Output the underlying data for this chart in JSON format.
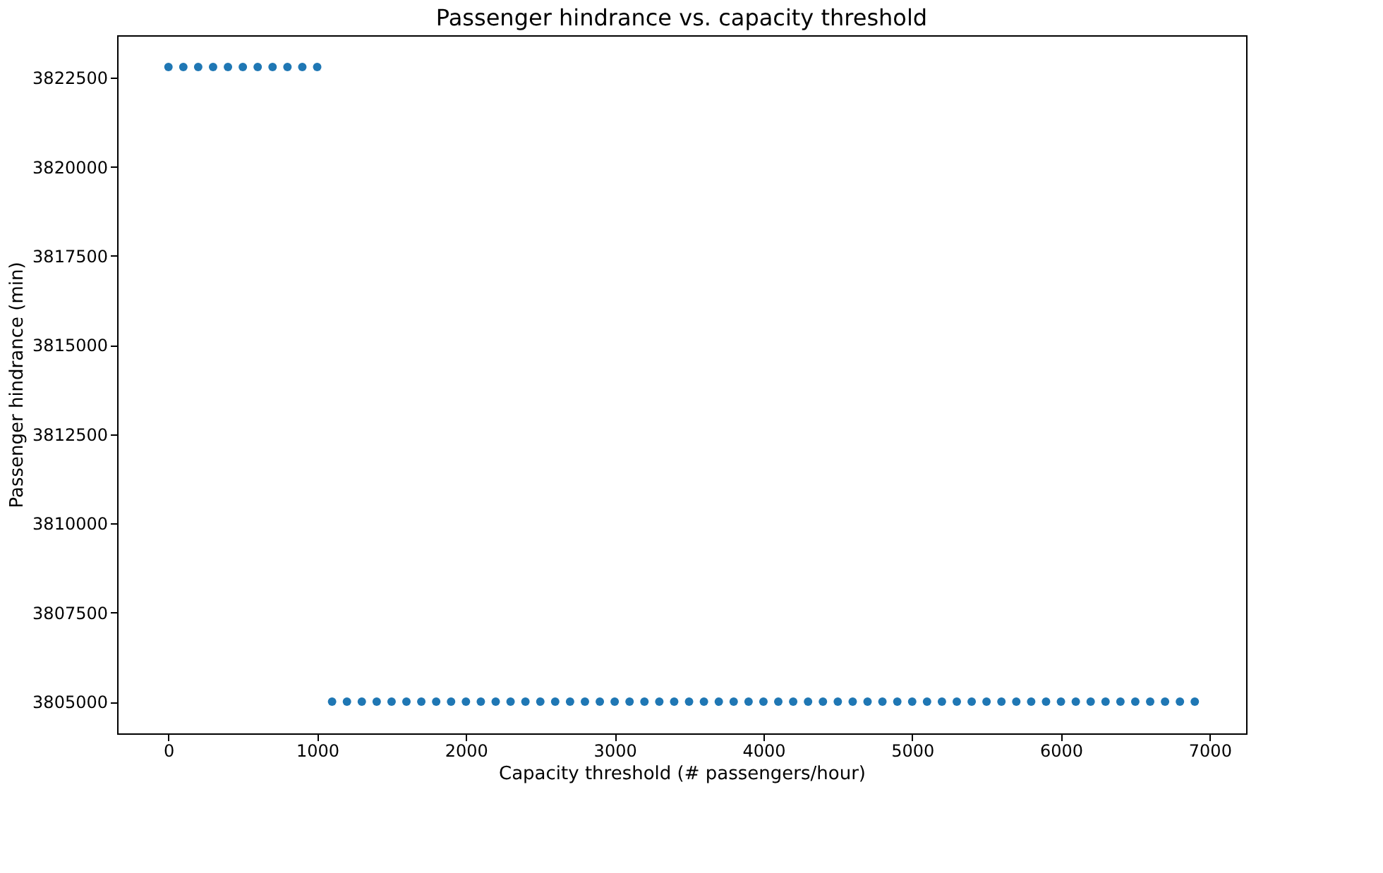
{
  "chart_data": {
    "type": "scatter",
    "title": "Passenger hindrance vs. capacity threshold",
    "xlabel": "Capacity threshold (# passengers/hour)",
    "ylabel": "Passenger hindrance (min)",
    "x": [
      0,
      100,
      200,
      300,
      400,
      500,
      600,
      700,
      800,
      900,
      1000,
      1100,
      1200,
      1300,
      1400,
      1500,
      1600,
      1700,
      1800,
      1900,
      2000,
      2100,
      2200,
      2300,
      2400,
      2500,
      2600,
      2700,
      2800,
      2900,
      3000,
      3100,
      3200,
      3300,
      3400,
      3500,
      3600,
      3700,
      3800,
      3900,
      4000,
      4100,
      4200,
      4300,
      4400,
      4500,
      4600,
      4700,
      4800,
      4900,
      5000,
      5100,
      5200,
      5300,
      5400,
      5500,
      5600,
      5700,
      5800,
      5900,
      6000,
      6100,
      6200,
      6300,
      6400,
      6500,
      6600,
      6700,
      6800,
      6900
    ],
    "series": [
      {
        "color": "#1f77b4",
        "values": [
          3822800,
          3822800,
          3822800,
          3822800,
          3822800,
          3822800,
          3822800,
          3822800,
          3822800,
          3822800,
          3822800,
          3805000,
          3805000,
          3805000,
          3805000,
          3805000,
          3805000,
          3805000,
          3805000,
          3805000,
          3805000,
          3805000,
          3805000,
          3805000,
          3805000,
          3805000,
          3805000,
          3805000,
          3805000,
          3805000,
          3805000,
          3805000,
          3805000,
          3805000,
          3805000,
          3805000,
          3805000,
          3805000,
          3805000,
          3805000,
          3805000,
          3805000,
          3805000,
          3805000,
          3805000,
          3805000,
          3805000,
          3805000,
          3805000,
          3805000,
          3805000,
          3805000,
          3805000,
          3805000,
          3805000,
          3805000,
          3805000,
          3805000,
          3805000,
          3805000,
          3805000,
          3805000,
          3805000,
          3805000,
          3805000,
          3805000,
          3805000,
          3805000,
          3805000,
          3805000
        ]
      }
    ],
    "xlim": [
      -345,
      7245
    ],
    "xticks": [
      0,
      1000,
      2000,
      3000,
      4000,
      5000,
      6000,
      7000
    ],
    "ylim": [
      3804110,
      3823690
    ],
    "yticks": [
      3805000,
      3807500,
      3810000,
      3812500,
      3815000,
      3817500,
      3820000,
      3822500
    ],
    "marker": "circle",
    "grid": false,
    "legend": false
  }
}
